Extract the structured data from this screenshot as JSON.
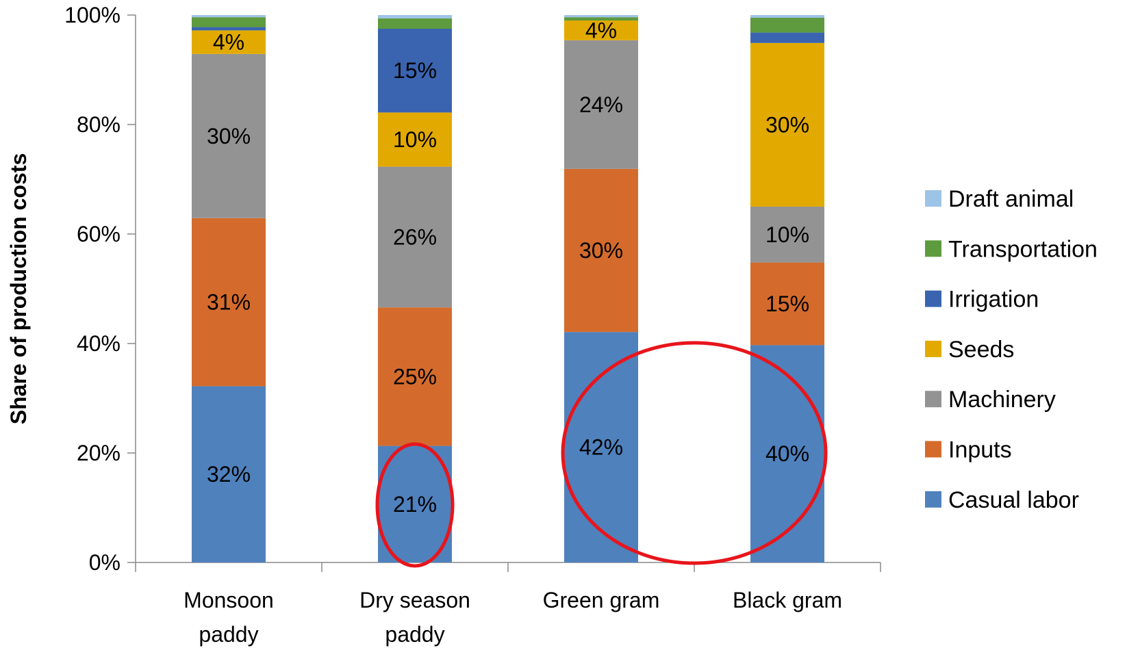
{
  "chart_data": {
    "type": "bar",
    "stacked": true,
    "percent_stacked": true,
    "ylabel": "Share of production costs",
    "xlabel": "",
    "ylim": [
      0,
      100
    ],
    "yticks": [
      0,
      20,
      40,
      60,
      80,
      100
    ],
    "ytick_labels": [
      "0%",
      "20%",
      "40%",
      "60%",
      "80%",
      "100%"
    ],
    "categories": [
      [
        "Monsoon",
        "paddy"
      ],
      [
        "Dry season",
        "paddy"
      ],
      [
        "Green gram"
      ],
      [
        "Black gram"
      ]
    ],
    "legend_position": "right",
    "series": [
      {
        "name": "Casual labor",
        "color": "#4F81BD",
        "values": [
          32.2,
          21.3,
          42.1,
          39.7
        ],
        "labels": [
          "32%",
          "21%",
          "42%",
          "40%"
        ]
      },
      {
        "name": "Inputs",
        "color": "#D46B2C",
        "values": [
          30.7,
          25.3,
          29.8,
          15.1
        ],
        "labels": [
          "31%",
          "25%",
          "30%",
          "15%"
        ]
      },
      {
        "name": "Machinery",
        "color": "#939393",
        "values": [
          30.0,
          25.7,
          23.5,
          10.2
        ],
        "labels": [
          "30%",
          "26%",
          "24%",
          "10%"
        ]
      },
      {
        "name": "Seeds",
        "color": "#E2AA00",
        "values": [
          4.3,
          9.9,
          3.6,
          29.9
        ],
        "labels": [
          "4%",
          "10%",
          "4%",
          "30%"
        ]
      },
      {
        "name": "Irrigation",
        "color": "#3A64B0",
        "values": [
          0.6,
          15.3,
          0.0,
          1.9
        ],
        "labels": [
          "",
          "15%",
          "",
          ""
        ]
      },
      {
        "name": "Transportation",
        "color": "#5E9A3E",
        "values": [
          1.8,
          1.9,
          0.6,
          2.7
        ],
        "labels": [
          "",
          "",
          "",
          ""
        ]
      },
      {
        "name": "Draft animal",
        "color": "#9DC3E6",
        "values": [
          0.4,
          0.6,
          0.4,
          0.5
        ],
        "labels": [
          "",
          "",
          "",
          ""
        ]
      }
    ],
    "highlights": [
      {
        "type": "ellipse",
        "color": "#E8151B",
        "category_index": 1,
        "y_center": 10.5
      },
      {
        "type": "ellipse",
        "color": "#E8151B",
        "category_index": 2.5,
        "y_center": 20
      }
    ]
  }
}
